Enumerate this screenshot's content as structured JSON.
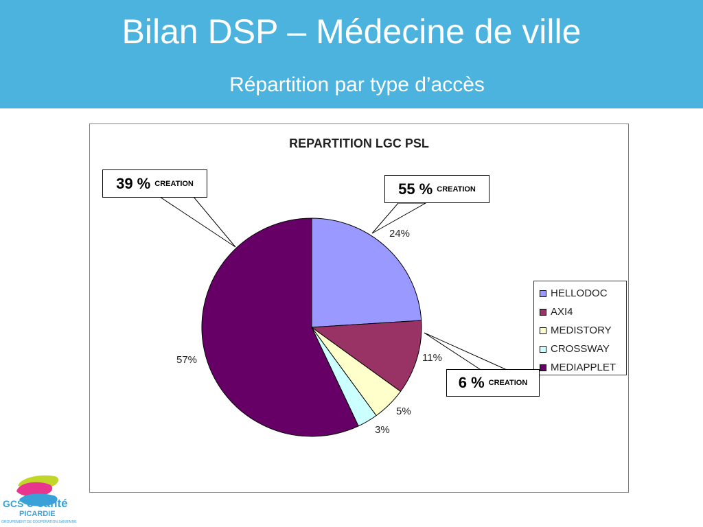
{
  "slide": {
    "title": "Bilan DSP – Médecine de ville",
    "subtitle": "Répartition par type d’accès"
  },
  "chart_data": {
    "type": "pie",
    "title": "REPARTITION LGC PSL",
    "categories": [
      "HELLODOC",
      "AXI4",
      "MEDISTORY",
      "CROSSWAY",
      "MEDIAPPLET"
    ],
    "values": [
      24,
      11,
      5,
      3,
      57
    ],
    "value_labels": [
      "24%",
      "11%",
      "5%",
      "3%",
      "57%"
    ],
    "colors": [
      "#9999ff",
      "#993366",
      "#ffffcc",
      "#ccffff",
      "#660066"
    ],
    "legend_position": "right"
  },
  "callouts": [
    {
      "value": "39 %",
      "note": "CREATION"
    },
    {
      "value": "55 %",
      "note": "CREATION"
    },
    {
      "value": "6 %",
      "note": "CREATION"
    }
  ],
  "logo": {
    "prefix": "GCS",
    "name": "e-santé",
    "region": "PICARDIE",
    "tagline": "GROUPEMENT DE COOPÉRATION SANITAIRE"
  }
}
